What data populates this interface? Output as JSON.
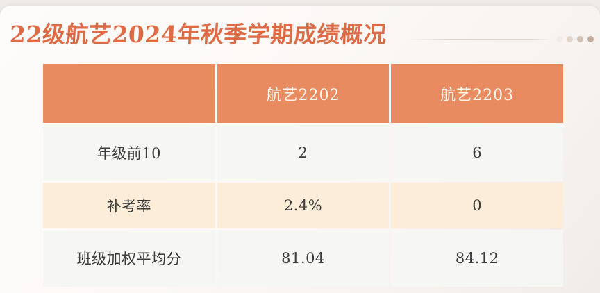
{
  "slide": {
    "title": "22级航艺2024年秋季学期成绩概况",
    "pager_dots_count": 4
  },
  "chart_data": {
    "type": "table",
    "title": "22级航艺2024年秋季学期成绩概况",
    "columns": [
      "",
      "航艺2202",
      "航艺2203"
    ],
    "rows": [
      {
        "label": "年级前10",
        "values": [
          "2",
          "6"
        ]
      },
      {
        "label": "补考率",
        "values": [
          "2.4%",
          "0"
        ]
      },
      {
        "label": "班级加权平均分",
        "values": [
          "81.04",
          "84.12"
        ]
      }
    ]
  },
  "theme": {
    "title-color": "#dd6b46",
    "header-bg": "#e98b60",
    "header-text": "#fdf7f0",
    "row-gray": "#f6f6f5",
    "row-cream": "#fcedd9",
    "text-dark": "#3b3b3b",
    "dots": [
      "#f2ebe6",
      "#e2d5cc",
      "#d3c1b5",
      "#c2aa9b"
    ]
  }
}
